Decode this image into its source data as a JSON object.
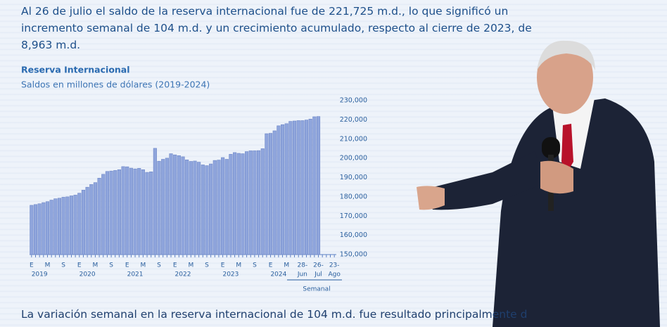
{
  "header": "Al 26 de julio el saldo de la reserva internacional fue de 221,725 m.d., lo que significó un incremento semanal de 104 m.d. y un crecimiento acumulado, respecto al cierre de 2023, de 8,963 m.d.",
  "footer": "La variación semanal en la reserva internacional de 104 m.d. fue resultado principalmente d",
  "chart_data": {
    "type": "bar",
    "title": "Reserva Internacional",
    "subtitle": "Saldos en millones de dólares (2019-2024)",
    "color": "#8fa5dc",
    "categories": [
      "E",
      null,
      null,
      null,
      "M",
      null,
      null,
      null,
      "S",
      null,
      null,
      null,
      "E",
      null,
      null,
      null,
      "M",
      null,
      null,
      null,
      "S",
      null,
      null,
      null,
      "E",
      null,
      null,
      null,
      "M",
      null,
      null,
      null,
      "S",
      null,
      null,
      null,
      "E",
      null,
      null,
      null,
      "M",
      null,
      null,
      null,
      "S",
      null,
      null,
      null,
      "E",
      null,
      null,
      null,
      "M",
      null,
      null,
      null,
      "S",
      null,
      null,
      null,
      "E",
      null,
      null,
      null,
      "M",
      null,
      null,
      null,
      "28-",
      null,
      null,
      null,
      "26-",
      null,
      null,
      null,
      "23-"
    ],
    "sublabels": [
      null,
      null,
      "2019",
      null,
      null,
      null,
      null,
      null,
      null,
      null,
      null,
      null,
      null,
      null,
      "2020",
      null,
      null,
      null,
      null,
      null,
      null,
      null,
      null,
      null,
      null,
      null,
      "2021",
      null,
      null,
      null,
      null,
      null,
      null,
      null,
      null,
      null,
      null,
      null,
      "2022",
      null,
      null,
      null,
      null,
      null,
      null,
      null,
      null,
      null,
      null,
      null,
      "2023",
      null,
      null,
      null,
      null,
      null,
      null,
      null,
      null,
      null,
      null,
      null,
      "2024",
      null,
      null,
      null,
      null,
      null,
      "Jun",
      null,
      null,
      null,
      "Jul",
      null,
      null,
      null,
      "Ago"
    ],
    "period_label": "Semanal",
    "values": [
      175600,
      176000,
      176400,
      177000,
      177500,
      178300,
      179000,
      179300,
      179800,
      180000,
      180500,
      180900,
      181900,
      183500,
      185000,
      186400,
      187400,
      189700,
      191700,
      193200,
      193400,
      193700,
      194100,
      195700,
      195600,
      194900,
      194500,
      194800,
      194100,
      192700,
      193000,
      205200,
      198500,
      199500,
      200100,
      202400,
      201800,
      201400,
      200800,
      199200,
      198400,
      198600,
      198000,
      196600,
      196200,
      197100,
      198900,
      199100,
      200400,
      199500,
      202100,
      203000,
      202600,
      202400,
      203500,
      203900,
      203900,
      204000,
      205000,
      212800,
      213000,
      214300,
      216900,
      217500,
      218000,
      219200,
      219400,
      219600,
      219600,
      219900,
      220400,
      221600,
      221725,
      null,
      null,
      null,
      null
    ],
    "ylim": [
      150000,
      230000
    ],
    "yticks": [
      {
        "value": 150000,
        "label": "150,000"
      },
      {
        "value": 160000,
        "label": "160,000"
      },
      {
        "value": 170000,
        "label": "170,000"
      },
      {
        "value": 180000,
        "label": "180,000"
      },
      {
        "value": 190000,
        "label": "190,000"
      },
      {
        "value": 200000,
        "label": "200,000"
      },
      {
        "value": 210000,
        "label": "210,000"
      },
      {
        "value": 220000,
        "label": "220,000"
      },
      {
        "value": 230000,
        "label": "230,000"
      }
    ]
  }
}
